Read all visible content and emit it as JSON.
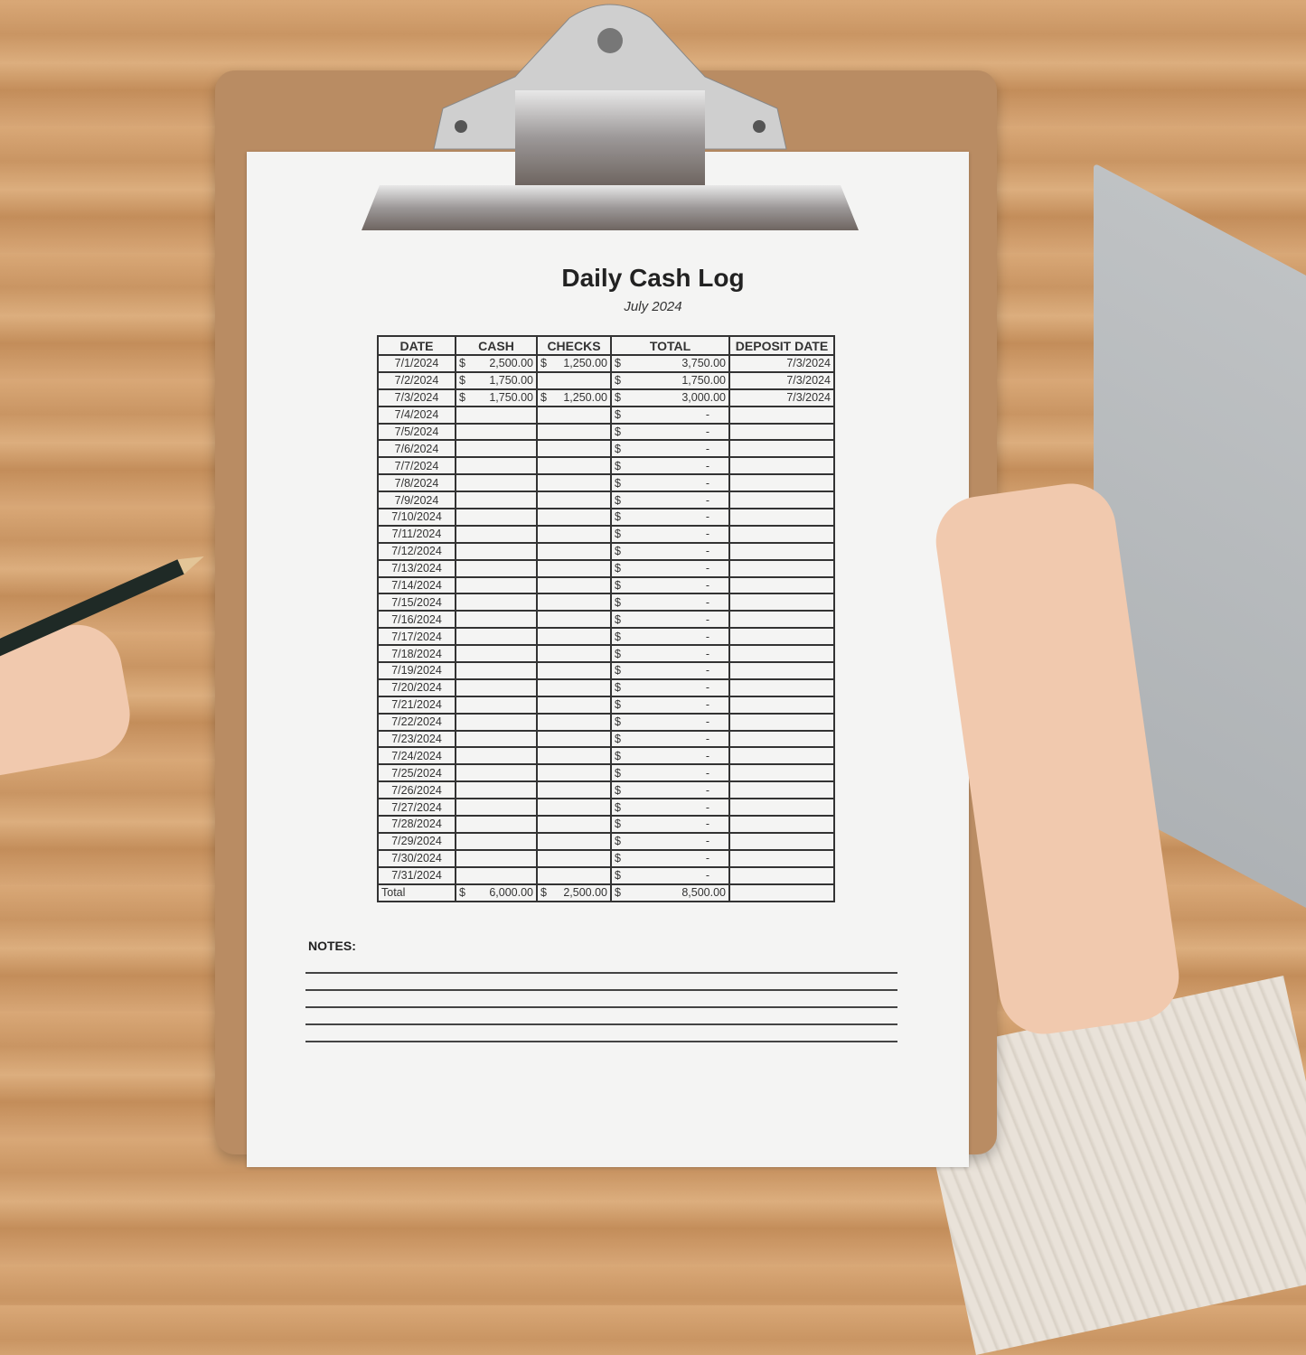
{
  "document": {
    "title": "Daily Cash Log",
    "subtitle": "July 2024",
    "notes_label": "NOTES:"
  },
  "table": {
    "headers": [
      "DATE",
      "CASH",
      "CHECKS",
      "TOTAL",
      "DEPOSIT DATE"
    ],
    "rows": [
      [
        "7/1/2024",
        "2,500.00",
        "1,250.00",
        "3,750.00",
        "7/3/2024"
      ],
      [
        "7/2/2024",
        "1,750.00",
        "",
        "1,750.00",
        "7/3/2024"
      ],
      [
        "7/3/2024",
        "1,750.00",
        "1,250.00",
        "3,000.00",
        "7/3/2024"
      ],
      [
        "7/4/2024",
        "",
        "",
        "-",
        ""
      ],
      [
        "7/5/2024",
        "",
        "",
        "-",
        ""
      ],
      [
        "7/6/2024",
        "",
        "",
        "-",
        ""
      ],
      [
        "7/7/2024",
        "",
        "",
        "-",
        ""
      ],
      [
        "7/8/2024",
        "",
        "",
        "-",
        ""
      ],
      [
        "7/9/2024",
        "",
        "",
        "-",
        ""
      ],
      [
        "7/10/2024",
        "",
        "",
        "-",
        ""
      ],
      [
        "7/11/2024",
        "",
        "",
        "-",
        ""
      ],
      [
        "7/12/2024",
        "",
        "",
        "-",
        ""
      ],
      [
        "7/13/2024",
        "",
        "",
        "-",
        ""
      ],
      [
        "7/14/2024",
        "",
        "",
        "-",
        ""
      ],
      [
        "7/15/2024",
        "",
        "",
        "-",
        ""
      ],
      [
        "7/16/2024",
        "",
        "",
        "-",
        ""
      ],
      [
        "7/17/2024",
        "",
        "",
        "-",
        ""
      ],
      [
        "7/18/2024",
        "",
        "",
        "-",
        ""
      ],
      [
        "7/19/2024",
        "",
        "",
        "-",
        ""
      ],
      [
        "7/20/2024",
        "",
        "",
        "-",
        ""
      ],
      [
        "7/21/2024",
        "",
        "",
        "-",
        ""
      ],
      [
        "7/22/2024",
        "",
        "",
        "-",
        ""
      ],
      [
        "7/23/2024",
        "",
        "",
        "-",
        ""
      ],
      [
        "7/24/2024",
        "",
        "",
        "-",
        ""
      ],
      [
        "7/25/2024",
        "",
        "",
        "-",
        ""
      ],
      [
        "7/26/2024",
        "",
        "",
        "-",
        ""
      ],
      [
        "7/27/2024",
        "",
        "",
        "-",
        ""
      ],
      [
        "7/28/2024",
        "",
        "",
        "-",
        ""
      ],
      [
        "7/29/2024",
        "",
        "",
        "-",
        ""
      ],
      [
        "7/30/2024",
        "",
        "",
        "-",
        ""
      ],
      [
        "7/31/2024",
        "",
        "",
        "-",
        ""
      ]
    ],
    "total": {
      "label": "Total",
      "cash": "6,000.00",
      "checks": "2,500.00",
      "total": "8,500.00"
    },
    "currency": "$"
  }
}
